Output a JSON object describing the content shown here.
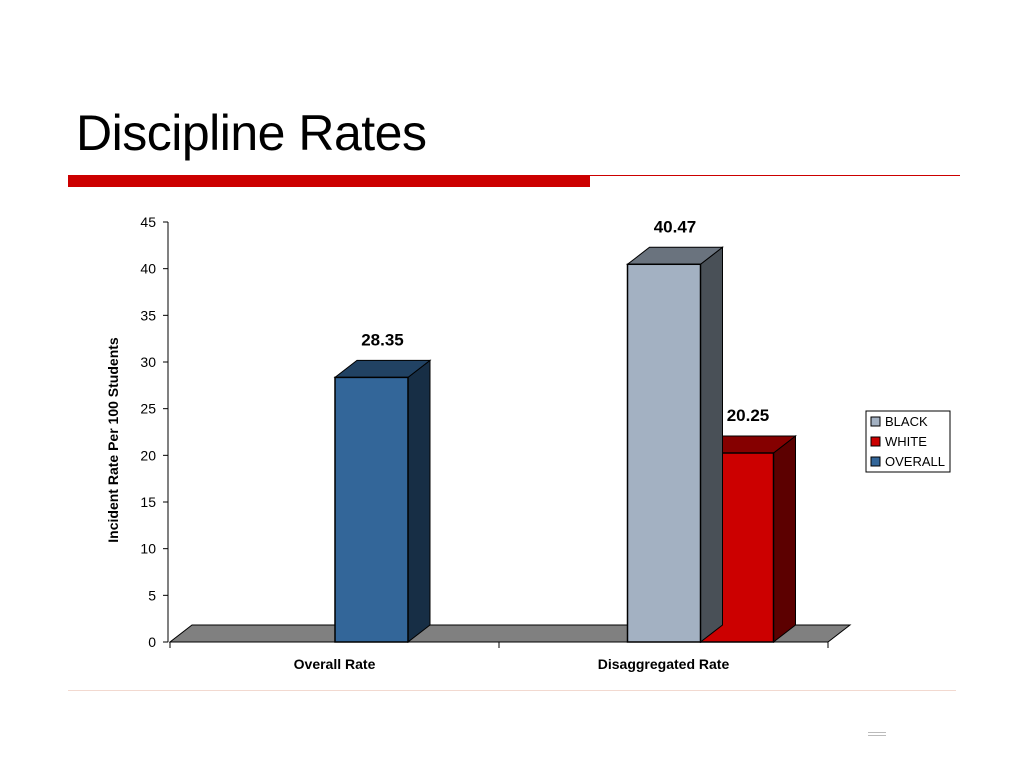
{
  "slide": {
    "title": "Discipline Rates"
  },
  "colors": {
    "accent": "#cc0000",
    "rule_light": "#f2d9d0"
  },
  "chart_data": {
    "type": "bar",
    "title": "",
    "xlabel": "",
    "ylabel": "Incident Rate Per 100 Students",
    "ylim": [
      0,
      45
    ],
    "yticks": [
      0,
      5,
      10,
      15,
      20,
      25,
      30,
      35,
      40,
      45
    ],
    "categories": [
      "Overall Rate",
      "Disaggregated Rate"
    ],
    "series": [
      {
        "name": "BLACK",
        "color": "#a3b1c2",
        "values": [
          null,
          40.47
        ]
      },
      {
        "name": "WHITE",
        "color": "#cc0000",
        "values": [
          null,
          20.25
        ]
      },
      {
        "name": "OVERALL",
        "color": "#336699",
        "values": [
          28.35,
          null
        ]
      }
    ],
    "data_labels": [
      "40.47",
      "20.25",
      "28.35"
    ],
    "legend_position": "right",
    "grid": false,
    "style": "3d-bar"
  }
}
